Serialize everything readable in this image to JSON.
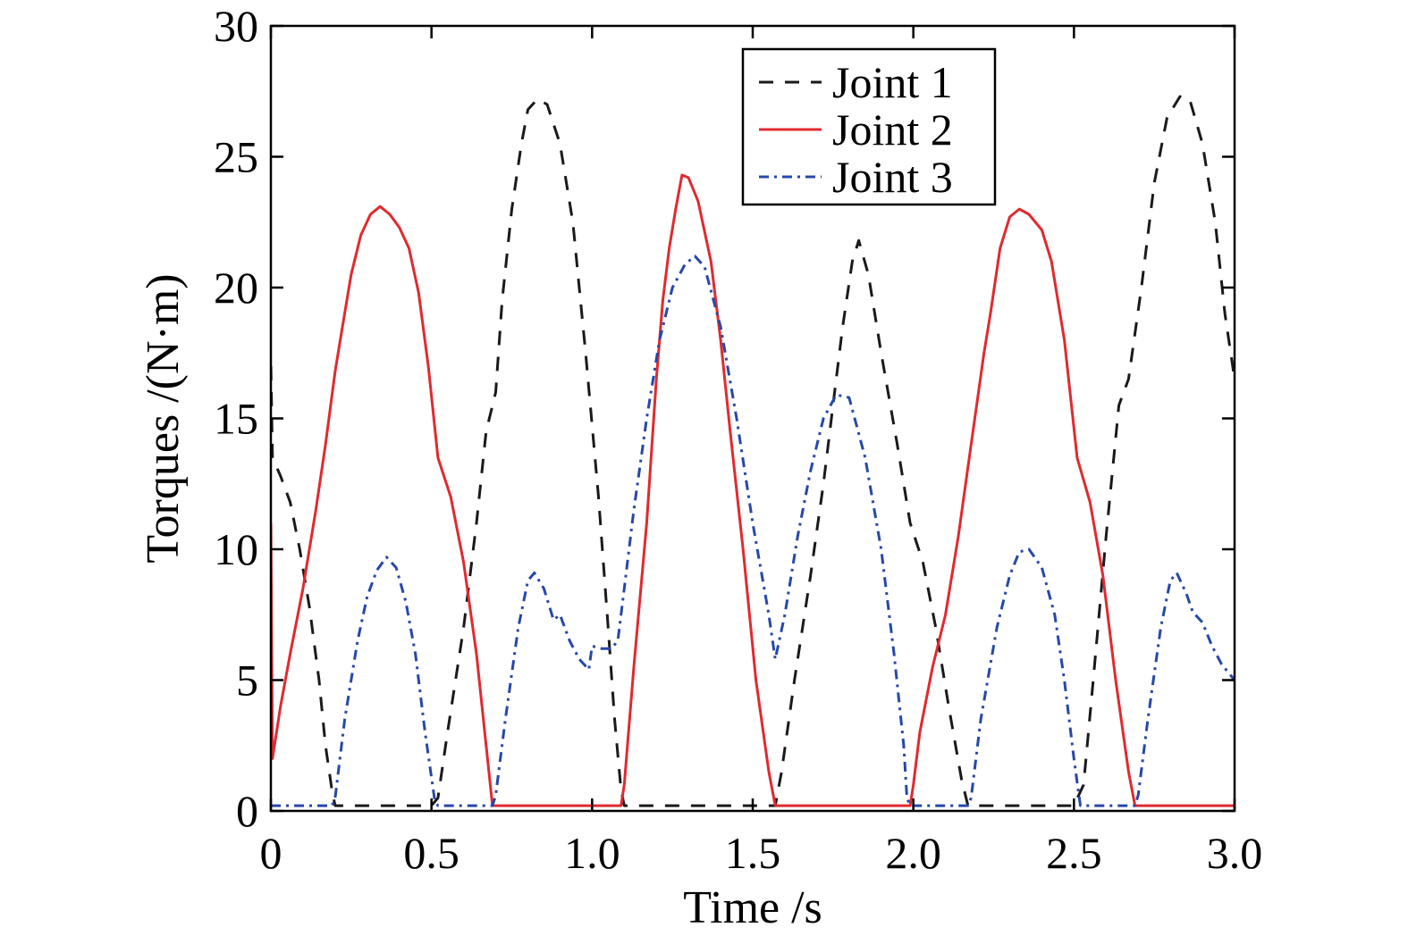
{
  "chart_data": {
    "type": "line",
    "title": "",
    "xlabel": "Time /s",
    "ylabel": "Torques /(N·m)",
    "xlim": [
      0,
      3.0
    ],
    "ylim": [
      0,
      30
    ],
    "x_ticks": [
      "0",
      "0.5",
      "1.0",
      "1.5",
      "2.0",
      "2.5",
      "3.0"
    ],
    "x_tick_values": [
      0,
      0.5,
      1.0,
      1.5,
      2.0,
      2.5,
      3.0
    ],
    "y_ticks": [
      "0",
      "5",
      "10",
      "15",
      "20",
      "25",
      "30"
    ],
    "y_tick_values": [
      0,
      5,
      10,
      15,
      20,
      25,
      30
    ],
    "grid": false,
    "legend_position": "top-right",
    "series": [
      {
        "name": "Joint 1",
        "color": "#1a1a1a",
        "dash": "dashed",
        "points": [
          [
            0.0,
            17.0
          ],
          [
            0.005,
            13.5
          ],
          [
            0.03,
            12.8
          ],
          [
            0.06,
            11.8
          ],
          [
            0.09,
            10.0
          ],
          [
            0.12,
            7.8
          ],
          [
            0.15,
            5.0
          ],
          [
            0.17,
            2.5
          ],
          [
            0.19,
            0.8
          ],
          [
            0.2,
            0.2
          ],
          [
            0.3,
            0.2
          ],
          [
            0.4,
            0.2
          ],
          [
            0.5,
            0.2
          ],
          [
            0.52,
            0.5
          ],
          [
            0.55,
            3.0
          ],
          [
            0.6,
            7.0
          ],
          [
            0.64,
            11.0
          ],
          [
            0.67,
            14.5
          ],
          [
            0.7,
            16.0
          ],
          [
            0.72,
            19.5
          ],
          [
            0.75,
            23.0
          ],
          [
            0.78,
            25.5
          ],
          [
            0.8,
            26.8
          ],
          [
            0.83,
            27.2
          ],
          [
            0.86,
            27.0
          ],
          [
            0.9,
            25.5
          ],
          [
            0.94,
            22.5
          ],
          [
            0.98,
            17.5
          ],
          [
            1.02,
            12.0
          ],
          [
            1.05,
            7.0
          ],
          [
            1.07,
            3.5
          ],
          [
            1.09,
            0.8
          ],
          [
            1.1,
            0.2
          ],
          [
            1.2,
            0.2
          ],
          [
            1.3,
            0.2
          ],
          [
            1.4,
            0.2
          ],
          [
            1.5,
            0.2
          ],
          [
            1.57,
            0.2
          ],
          [
            1.59,
            1.5
          ],
          [
            1.63,
            5.0
          ],
          [
            1.68,
            9.0
          ],
          [
            1.72,
            12.5
          ],
          [
            1.75,
            15.5
          ],
          [
            1.78,
            18.5
          ],
          [
            1.81,
            21.0
          ],
          [
            1.83,
            21.8
          ],
          [
            1.86,
            20.5
          ],
          [
            1.9,
            17.5
          ],
          [
            1.95,
            14.0
          ],
          [
            1.99,
            11.0
          ],
          [
            2.03,
            9.5
          ],
          [
            2.07,
            7.0
          ],
          [
            2.11,
            4.0
          ],
          [
            2.15,
            1.2
          ],
          [
            2.17,
            0.2
          ],
          [
            2.3,
            0.2
          ],
          [
            2.4,
            0.2
          ],
          [
            2.5,
            0.2
          ],
          [
            2.53,
            1.0
          ],
          [
            2.56,
            5.0
          ],
          [
            2.6,
            10.5
          ],
          [
            2.64,
            15.5
          ],
          [
            2.67,
            16.5
          ],
          [
            2.71,
            20.0
          ],
          [
            2.75,
            24.0
          ],
          [
            2.79,
            26.5
          ],
          [
            2.83,
            27.3
          ],
          [
            2.86,
            27.2
          ],
          [
            2.9,
            25.5
          ],
          [
            2.94,
            22.5
          ],
          [
            2.97,
            19.0
          ],
          [
            3.0,
            16.5
          ]
        ]
      },
      {
        "name": "Joint 2",
        "color": "#e02a2f",
        "dash": "solid",
        "points": [
          [
            0.0,
            11.0
          ],
          [
            0.005,
            2.0
          ],
          [
            0.03,
            4.0
          ],
          [
            0.06,
            6.0
          ],
          [
            0.1,
            8.5
          ],
          [
            0.14,
            11.5
          ],
          [
            0.17,
            14.0
          ],
          [
            0.2,
            16.8
          ],
          [
            0.22,
            18.3
          ],
          [
            0.25,
            20.5
          ],
          [
            0.28,
            22.0
          ],
          [
            0.31,
            22.8
          ],
          [
            0.34,
            23.1
          ],
          [
            0.37,
            22.8
          ],
          [
            0.4,
            22.3
          ],
          [
            0.43,
            21.5
          ],
          [
            0.46,
            19.8
          ],
          [
            0.49,
            17.0
          ],
          [
            0.52,
            13.5
          ],
          [
            0.56,
            12.0
          ],
          [
            0.6,
            9.5
          ],
          [
            0.64,
            6.0
          ],
          [
            0.67,
            2.5
          ],
          [
            0.69,
            0.2
          ],
          [
            0.8,
            0.2
          ],
          [
            0.9,
            0.2
          ],
          [
            1.0,
            0.2
          ],
          [
            1.09,
            0.2
          ],
          [
            1.1,
            1.0
          ],
          [
            1.13,
            5.5
          ],
          [
            1.17,
            11.0
          ],
          [
            1.2,
            16.5
          ],
          [
            1.22,
            19.5
          ],
          [
            1.24,
            21.5
          ],
          [
            1.26,
            23.0
          ],
          [
            1.28,
            24.3
          ],
          [
            1.3,
            24.2
          ],
          [
            1.33,
            23.3
          ],
          [
            1.37,
            21.0
          ],
          [
            1.4,
            18.0
          ],
          [
            1.43,
            14.5
          ],
          [
            1.47,
            10.0
          ],
          [
            1.51,
            5.0
          ],
          [
            1.55,
            1.5
          ],
          [
            1.57,
            0.2
          ],
          [
            1.7,
            0.2
          ],
          [
            1.8,
            0.2
          ],
          [
            1.9,
            0.2
          ],
          [
            1.99,
            0.2
          ],
          [
            2.0,
            1.0
          ],
          [
            2.02,
            3.0
          ],
          [
            2.06,
            5.5
          ],
          [
            2.1,
            7.5
          ],
          [
            2.14,
            10.5
          ],
          [
            2.18,
            14.0
          ],
          [
            2.22,
            17.5
          ],
          [
            2.24,
            19.0
          ],
          [
            2.27,
            21.5
          ],
          [
            2.3,
            22.7
          ],
          [
            2.33,
            23.0
          ],
          [
            2.36,
            22.8
          ],
          [
            2.4,
            22.2
          ],
          [
            2.43,
            21.0
          ],
          [
            2.47,
            18.0
          ],
          [
            2.51,
            13.5
          ],
          [
            2.55,
            11.8
          ],
          [
            2.59,
            9.0
          ],
          [
            2.63,
            5.0
          ],
          [
            2.67,
            1.5
          ],
          [
            2.69,
            0.2
          ],
          [
            2.8,
            0.2
          ],
          [
            2.9,
            0.2
          ],
          [
            3.0,
            0.2
          ]
        ]
      },
      {
        "name": "Joint 3",
        "color": "#2748a8",
        "dash": "dashdot",
        "points": [
          [
            0.0,
            0.2
          ],
          [
            0.1,
            0.2
          ],
          [
            0.19,
            0.2
          ],
          [
            0.2,
            0.5
          ],
          [
            0.23,
            3.5
          ],
          [
            0.27,
            6.5
          ],
          [
            0.3,
            8.2
          ],
          [
            0.33,
            9.2
          ],
          [
            0.36,
            9.7
          ],
          [
            0.39,
            9.3
          ],
          [
            0.42,
            8.0
          ],
          [
            0.45,
            6.0
          ],
          [
            0.48,
            3.0
          ],
          [
            0.51,
            0.4
          ],
          [
            0.52,
            0.2
          ],
          [
            0.6,
            0.2
          ],
          [
            0.69,
            0.2
          ],
          [
            0.7,
            0.6
          ],
          [
            0.73,
            3.5
          ],
          [
            0.77,
            7.0
          ],
          [
            0.8,
            8.8
          ],
          [
            0.82,
            9.1
          ],
          [
            0.85,
            8.5
          ],
          [
            0.88,
            7.3
          ],
          [
            0.9,
            7.5
          ],
          [
            0.93,
            6.5
          ],
          [
            0.96,
            5.8
          ],
          [
            0.99,
            5.4
          ],
          [
            1.0,
            6.3
          ],
          [
            1.03,
            6.2
          ],
          [
            1.06,
            6.2
          ],
          [
            1.08,
            6.5
          ],
          [
            1.1,
            8.5
          ],
          [
            1.13,
            11.5
          ],
          [
            1.17,
            15.0
          ],
          [
            1.21,
            18.0
          ],
          [
            1.25,
            20.0
          ],
          [
            1.29,
            20.9
          ],
          [
            1.32,
            21.2
          ],
          [
            1.35,
            20.8
          ],
          [
            1.4,
            18.5
          ],
          [
            1.45,
            15.0
          ],
          [
            1.5,
            11.0
          ],
          [
            1.55,
            7.5
          ],
          [
            1.57,
            5.8
          ],
          [
            1.6,
            7.5
          ],
          [
            1.64,
            10.5
          ],
          [
            1.68,
            13.0
          ],
          [
            1.72,
            15.0
          ],
          [
            1.76,
            15.9
          ],
          [
            1.8,
            15.8
          ],
          [
            1.85,
            13.5
          ],
          [
            1.9,
            10.0
          ],
          [
            1.94,
            6.0
          ],
          [
            1.97,
            2.5
          ],
          [
            1.98,
            0.5
          ],
          [
            1.99,
            0.2
          ],
          [
            2.1,
            0.2
          ],
          [
            2.17,
            0.2
          ],
          [
            2.18,
            0.5
          ],
          [
            2.21,
            3.5
          ],
          [
            2.26,
            7.0
          ],
          [
            2.3,
            9.0
          ],
          [
            2.33,
            9.9
          ],
          [
            2.36,
            10.0
          ],
          [
            2.4,
            9.3
          ],
          [
            2.44,
            7.5
          ],
          [
            2.47,
            5.0
          ],
          [
            2.5,
            2.0
          ],
          [
            2.52,
            0.2
          ],
          [
            2.6,
            0.2
          ],
          [
            2.69,
            0.2
          ],
          [
            2.7,
            0.6
          ],
          [
            2.73,
            3.5
          ],
          [
            2.77,
            7.0
          ],
          [
            2.8,
            8.8
          ],
          [
            2.82,
            9.1
          ],
          [
            2.85,
            8.3
          ],
          [
            2.87,
            7.6
          ],
          [
            2.9,
            7.2
          ],
          [
            2.93,
            6.3
          ],
          [
            2.96,
            5.6
          ],
          [
            3.0,
            5.0
          ]
        ]
      }
    ]
  }
}
